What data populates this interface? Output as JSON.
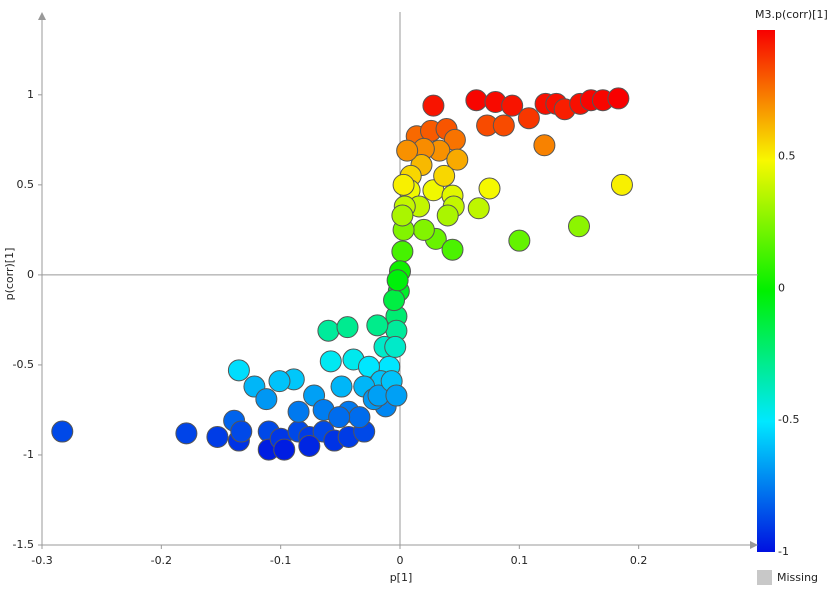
{
  "chart_data": {
    "type": "scatter",
    "x_label": "p[1]",
    "y_label": "p(corr)[1]",
    "x": [
      0.028,
      0.064,
      0.08,
      0.094,
      0.122,
      0.131,
      0.138,
      0.151,
      0.16,
      0.17,
      0.183,
      0.121,
      0.073,
      0.087,
      0.108,
      0.014,
      0.026,
      0.039,
      0.046,
      0.033,
      0.02,
      0.048,
      0.018,
      0.009,
      0.028,
      0.037,
      0.075,
      0.186,
      0.008,
      0.044,
      0.016,
      0.066,
      0.045,
      0.04,
      0.004,
      0.15,
      0.1,
      0.03,
      0.044,
      0.02,
      0.003,
      0.002,
      0,
      -0.001,
      -0.003,
      -0.005,
      -0.003,
      -0.06,
      -0.044,
      -0.019,
      -0.013,
      -0.009,
      -0.058,
      -0.039,
      -0.026,
      -0.016,
      -0.049,
      -0.03,
      -0.135,
      -0.089,
      -0.101,
      -0.122,
      -0.112,
      -0.012,
      -0.022,
      -0.072,
      -0.064,
      -0.043,
      -0.018,
      -0.283,
      -0.179,
      -0.153,
      -0.139,
      -0.135,
      -0.11,
      -0.133,
      -0.11,
      -0.1,
      -0.085,
      -0.076,
      -0.064,
      -0.055,
      -0.043,
      -0.03,
      -0.034,
      -0.085,
      -0.051,
      -0.097,
      -0.076,
      0.006,
      0.003,
      0.002,
      -0.002,
      -0.004,
      -0.007,
      -0.003
    ],
    "y": [
      0.94,
      0.97,
      0.96,
      0.94,
      0.95,
      0.95,
      0.92,
      0.95,
      0.97,
      0.97,
      0.98,
      0.72,
      0.83,
      0.83,
      0.87,
      0.77,
      0.8,
      0.81,
      0.75,
      0.69,
      0.7,
      0.64,
      0.61,
      0.55,
      0.47,
      0.55,
      0.48,
      0.5,
      0.47,
      0.44,
      0.38,
      0.37,
      0.38,
      0.33,
      0.38,
      0.27,
      0.19,
      0.2,
      0.14,
      0.25,
      0.25,
      0.13,
      0.02,
      -0.09,
      -0.23,
      -0.14,
      -0.31,
      -0.31,
      -0.29,
      -0.28,
      -0.4,
      -0.51,
      -0.48,
      -0.47,
      -0.51,
      -0.59,
      -0.62,
      -0.62,
      -0.53,
      -0.58,
      -0.59,
      -0.62,
      -0.69,
      -0.73,
      -0.69,
      -0.67,
      -0.75,
      -0.76,
      -0.67,
      -0.87,
      -0.88,
      -0.9,
      -0.81,
      -0.92,
      -0.87,
      -0.87,
      -0.97,
      -0.91,
      -0.87,
      -0.9,
      -0.87,
      -0.92,
      -0.9,
      -0.87,
      -0.79,
      -0.76,
      -0.79,
      -0.97,
      -0.95,
      0.69,
      0.5,
      0.33,
      -0.03,
      -0.4,
      -0.59,
      -0.67
    ],
    "xlim": [
      -0.3,
      0.3
    ],
    "ylim": [
      -1.5,
      1.46
    ],
    "xticks": [
      -0.3,
      -0.2,
      -0.1,
      0,
      0.1,
      0.2
    ],
    "yticks": [
      -1.5,
      -1,
      -0.5,
      0,
      0.5,
      1
    ],
    "zero_lines": true,
    "colorbar": {
      "title": "M3.p(corr)[1]",
      "lim": [
        -1,
        0.98
      ],
      "ticks": [
        -1,
        -0.5,
        0,
        0.5
      ],
      "colors": [
        "#0010e0",
        "#00e8ff",
        "#00f000",
        "#f8f800",
        "#f80000"
      ]
    },
    "missing_label": "Missing"
  }
}
